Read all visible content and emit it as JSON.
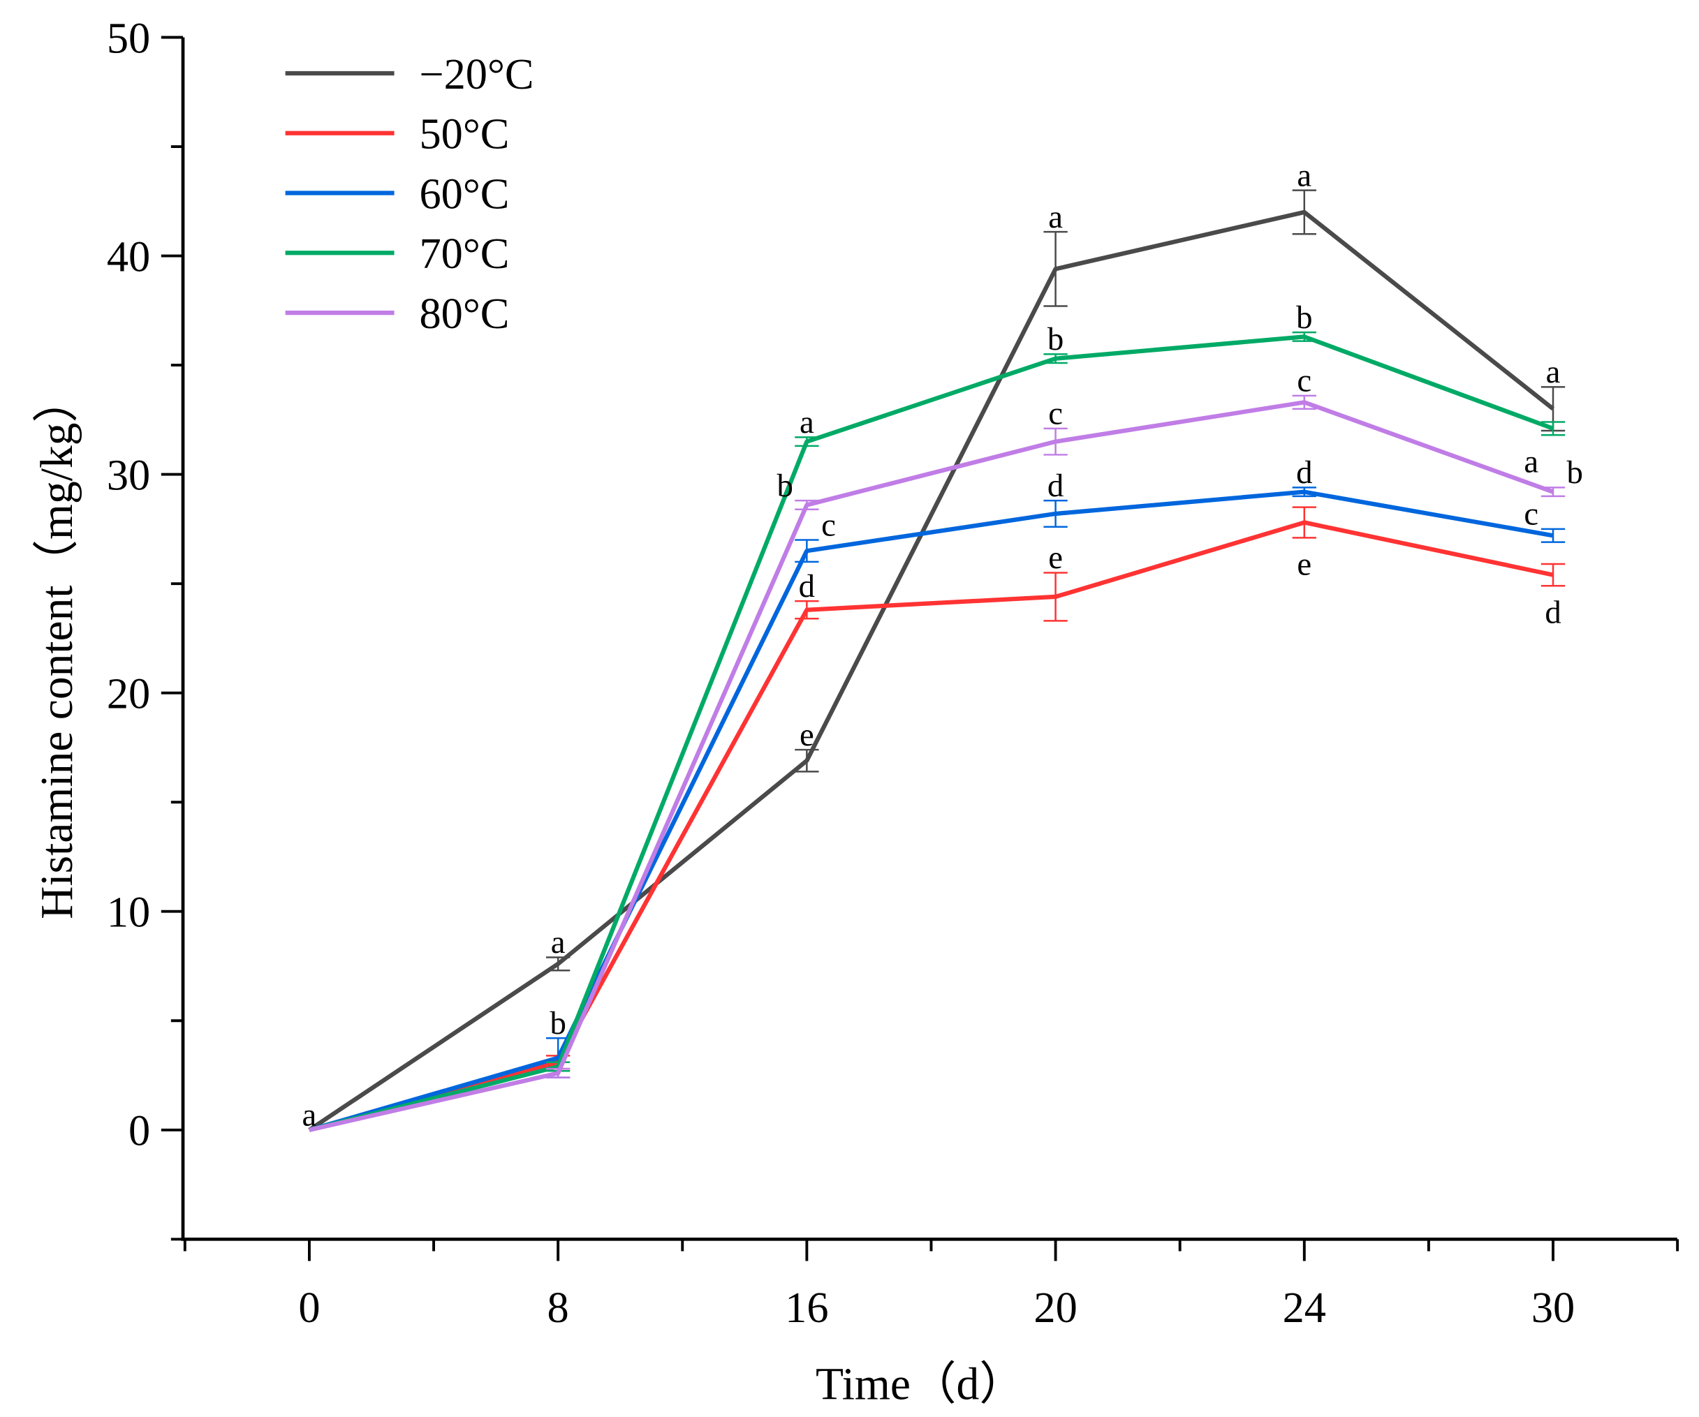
{
  "chart_data": {
    "type": "line",
    "title": "",
    "xlabel": "Time（d）",
    "ylabel": "Histamine content（mg/kg）",
    "categories": [
      "0",
      "8",
      "16",
      "20",
      "24",
      "30"
    ],
    "ylim": [
      -5,
      50
    ],
    "yticks": [
      0,
      10,
      20,
      30,
      40,
      50
    ],
    "grid": false,
    "legend_position": "top-left",
    "series": [
      {
        "name": "−20°C",
        "color": "#4a4a4a",
        "values": [
          0,
          7.6,
          16.9,
          39.4,
          42.0,
          33.0
        ],
        "errors": [
          0,
          0.3,
          0.5,
          1.7,
          1.0,
          1.0
        ],
        "labels": [
          "a",
          "a",
          "e",
          "a",
          "a",
          "a"
        ],
        "label_side": [
          "above",
          "above",
          "above",
          "above",
          "above",
          "above"
        ]
      },
      {
        "name": "50°C",
        "color": "#ff3333",
        "values": [
          0,
          3.1,
          23.8,
          24.4,
          27.8,
          25.4
        ],
        "errors": [
          0,
          0.3,
          0.4,
          1.1,
          0.7,
          0.5
        ],
        "labels": [
          "",
          "",
          "d",
          "e",
          "e",
          "d"
        ],
        "label_side": [
          "above",
          "above",
          "above",
          "above",
          "below",
          "below"
        ]
      },
      {
        "name": "60°C",
        "color": "#0066dd",
        "values": [
          0,
          3.3,
          26.5,
          28.2,
          29.2,
          27.2
        ],
        "errors": [
          0,
          0.9,
          0.5,
          0.6,
          0.2,
          0.3
        ],
        "labels": [
          "",
          "b",
          "c",
          "d",
          "d",
          "c"
        ],
        "label_side": [
          "above",
          "above",
          "above",
          "above",
          "above",
          "above"
        ]
      },
      {
        "name": "70°C",
        "color": "#00aa66",
        "values": [
          0,
          2.9,
          31.5,
          35.3,
          36.3,
          32.1
        ],
        "errors": [
          0,
          0.2,
          0.2,
          0.2,
          0.2,
          0.3
        ],
        "labels": [
          "",
          "",
          "a",
          "b",
          "b",
          "a"
        ],
        "label_side": [
          "above",
          "above",
          "above",
          "above",
          "above",
          "below"
        ]
      },
      {
        "name": "80°C",
        "color": "#c07de6",
        "values": [
          0,
          2.6,
          28.6,
          31.5,
          33.3,
          29.2
        ],
        "errors": [
          0,
          0.2,
          0.2,
          0.6,
          0.3,
          0.2
        ],
        "labels": [
          "",
          "",
          "b",
          "c",
          "c",
          "b"
        ],
        "label_side": [
          "above",
          "above",
          "above",
          "above",
          "above",
          "above"
        ]
      }
    ]
  }
}
